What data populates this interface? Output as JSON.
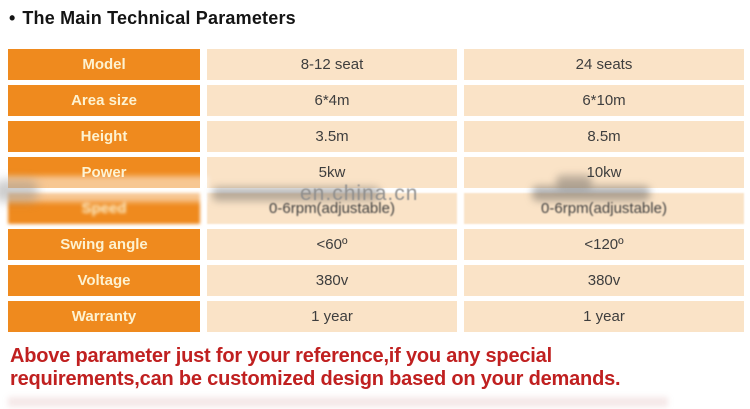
{
  "title": {
    "bullet": "•",
    "text": "The Main Technical Parameters"
  },
  "table": {
    "rows": [
      {
        "label": "Model",
        "col1": "8-12 seat",
        "col2": "24 seats"
      },
      {
        "label": "Area size",
        "col1": "6*4m",
        "col2": "6*10m"
      },
      {
        "label": "Height",
        "col1": "3.5m",
        "col2": "8.5m"
      },
      {
        "label": "Power",
        "col1": "5kw",
        "col2": "10kw"
      },
      {
        "label": "Speed",
        "col1": "0-6rpm(adjustable)",
        "col2": "0-6rpm(adjustable)"
      },
      {
        "label": "Swing angle",
        "col1": "<60º",
        "col2": "<120º"
      },
      {
        "label": "Voltage",
        "col1": "380v",
        "col2": "380v"
      },
      {
        "label": "Warranty",
        "col1": "1 year",
        "col2": "1 year"
      }
    ]
  },
  "watermark": {
    "text": "en.china.cn"
  },
  "footer_note": {
    "line1": "Above parameter just for your reference,if you any special",
    "line2": "requirements,can be customized design based on your demands."
  },
  "colors": {
    "label_bg": "#EF8A1E",
    "label_text": "#FDF2D0",
    "value_bg": "#FAE3C7",
    "value_text": "#3E3E3E",
    "note_red": "#C02020",
    "watermark_gray": "#8C8C8C"
  }
}
